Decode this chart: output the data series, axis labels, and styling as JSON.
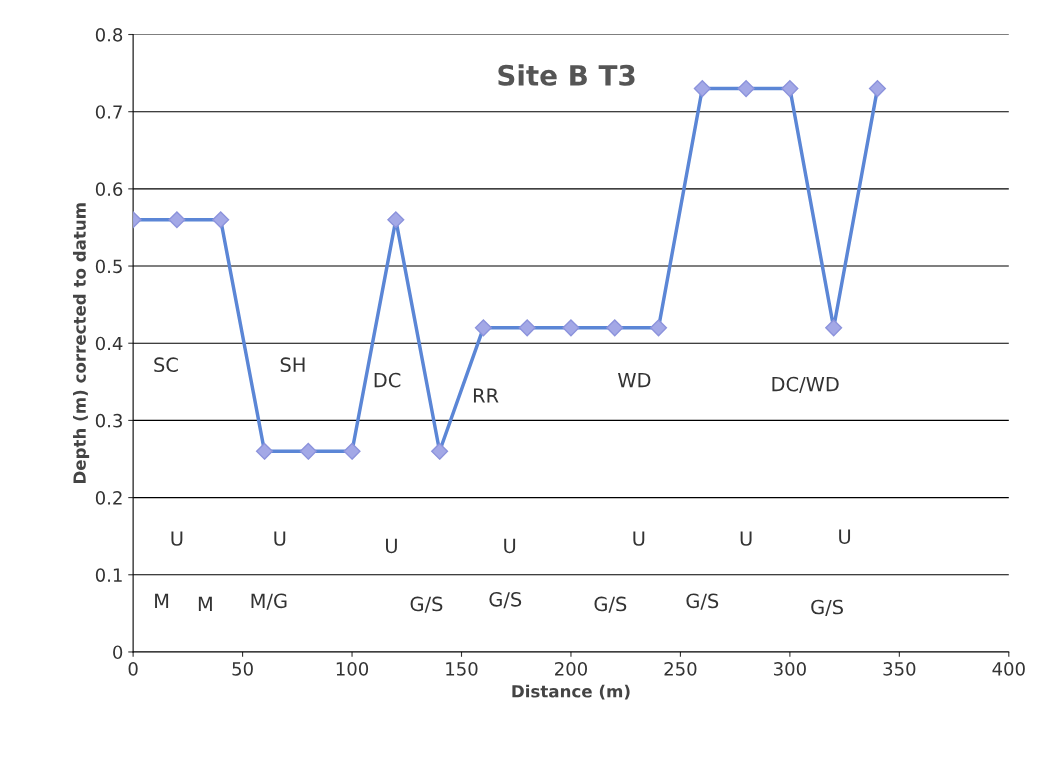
{
  "chart_data": {
    "type": "line",
    "title": "Site B T3",
    "xlabel": "Distance (m)",
    "ylabel": "Depth (m) corrected to datum",
    "x": [
      0,
      20,
      40,
      60,
      80,
      100,
      120,
      140,
      160,
      180,
      200,
      220,
      240,
      260,
      280,
      300,
      320,
      340
    ],
    "series": [
      {
        "color": "#5b86d6",
        "values": [
          0.56,
          0.56,
          0.56,
          0.26,
          0.26,
          0.26,
          0.56,
          0.26,
          0.42,
          0.42,
          0.42,
          0.42,
          0.42,
          0.73,
          0.73,
          0.73,
          0.42,
          0.73
        ]
      }
    ],
    "xlim": [
      0,
      400
    ],
    "xticks": [
      0,
      50,
      100,
      150,
      200,
      250,
      300,
      350,
      400
    ],
    "ylim": [
      0,
      0.8
    ],
    "yticks": [
      0,
      0.1,
      0.2,
      0.3,
      0.4,
      0.5,
      0.6,
      0.7,
      0.8
    ],
    "grid": "y",
    "marker": "diamond",
    "line_style": "solid",
    "annotations": [
      "SC",
      "SH",
      "DC",
      "RR",
      "WD",
      "DC/WD",
      "U",
      "U",
      "U",
      "U",
      "U",
      "U",
      "U",
      "M",
      "M",
      "M/G",
      "G/S",
      "G/S",
      "G/S",
      "G/S",
      "G/S"
    ]
  }
}
